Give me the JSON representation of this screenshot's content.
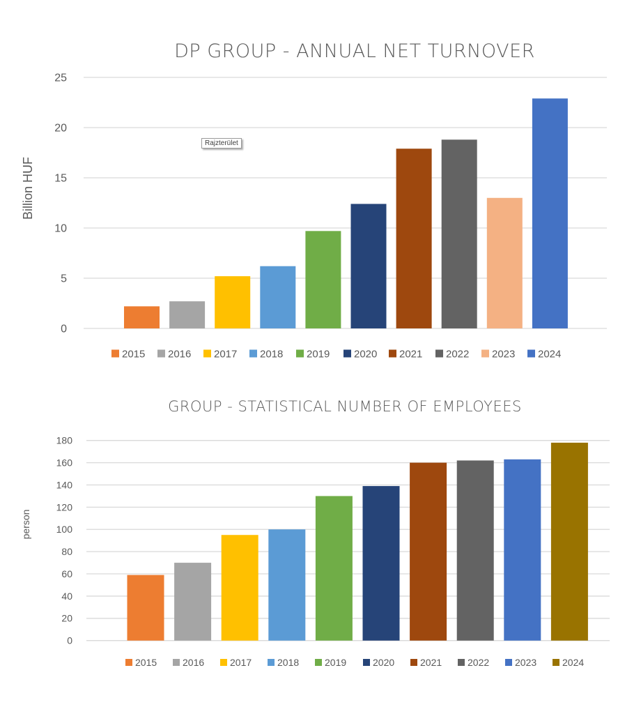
{
  "chart_data": [
    {
      "type": "bar",
      "title": "DP GROUP - ANNUAL NET TURNOVER",
      "xlabel": "",
      "ylabel": "Billion HUF",
      "ylim": [
        0,
        25
      ],
      "yticks": [
        0,
        5,
        10,
        15,
        20,
        25
      ],
      "grid": true,
      "legend_position": "bottom",
      "categories": [
        "2015",
        "2016",
        "2017",
        "2018",
        "2019",
        "2020",
        "2021",
        "2022",
        "2023",
        "2024"
      ],
      "values": [
        2.2,
        2.7,
        5.2,
        6.2,
        9.7,
        12.4,
        17.9,
        18.8,
        13.0,
        22.9
      ],
      "colors": [
        "#ed7d31",
        "#a5a5a5",
        "#ffc000",
        "#5b9bd5",
        "#70ad47",
        "#264478",
        "#9e480e",
        "#636363",
        "#f4b183",
        "#4472c4"
      ],
      "annotation": "Rajzterület"
    },
    {
      "type": "bar",
      "title": "GROUP - STATISTICAL NUMBER OF EMPLOYEES",
      "xlabel": "",
      "ylabel": "person",
      "ylim": [
        0,
        180
      ],
      "yticks": [
        0,
        20,
        40,
        60,
        80,
        100,
        120,
        140,
        160,
        180
      ],
      "grid": true,
      "legend_position": "bottom",
      "categories": [
        "2015",
        "2016",
        "2017",
        "2018",
        "2019",
        "2020",
        "2021",
        "2022",
        "2023",
        "2024"
      ],
      "values": [
        59,
        70,
        95,
        100,
        130,
        139,
        160,
        162,
        163,
        178
      ],
      "colors": [
        "#ed7d31",
        "#a5a5a5",
        "#ffc000",
        "#5b9bd5",
        "#70ad47",
        "#264478",
        "#9e480e",
        "#636363",
        "#4472c4",
        "#997300"
      ]
    }
  ]
}
